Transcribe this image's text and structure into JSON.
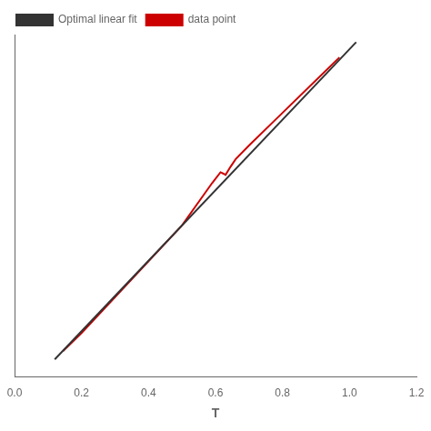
{
  "chart_data": {
    "type": "line",
    "xlabel": "T",
    "series": [
      {
        "name": "Optimal linear fit",
        "color": "#333333",
        "x": [
          0.12,
          1.02
        ],
        "values": [
          0.0046,
          0.9766
        ]
      },
      {
        "name": "data point",
        "color": "#cc0000",
        "x": [
          0.145,
          0.2,
          0.3,
          0.4,
          0.5,
          0.59,
          0.615,
          0.625,
          0.63,
          0.645,
          0.66,
          0.7,
          0.8,
          0.9,
          0.97
        ],
        "values": [
          0.03,
          0.085,
          0.195,
          0.305,
          0.415,
          0.545,
          0.578,
          0.573,
          0.57,
          0.595,
          0.618,
          0.66,
          0.76,
          0.86,
          0.93
        ]
      }
    ],
    "xlim": [
      0.0,
      1.2
    ],
    "xticks": [
      {
        "value": 0.0,
        "label": "0.0"
      },
      {
        "value": 0.2,
        "label": "0.2"
      },
      {
        "value": 0.4,
        "label": "0.4"
      },
      {
        "value": 0.6,
        "label": "0.6"
      },
      {
        "value": 0.8,
        "label": "0.8"
      },
      {
        "value": 1.0,
        "label": "1.0"
      },
      {
        "value": 1.2,
        "label": "1.2"
      }
    ],
    "ylim": [
      -0.05,
      1.0
    ],
    "yticks": [
      0,
      0.1,
      0.2,
      0.3,
      0.4,
      0.5,
      0.6,
      0.7,
      0.8,
      0.9,
      1.0
    ],
    "tick_labels": "x",
    "grid": false,
    "legend": "upper left"
  }
}
